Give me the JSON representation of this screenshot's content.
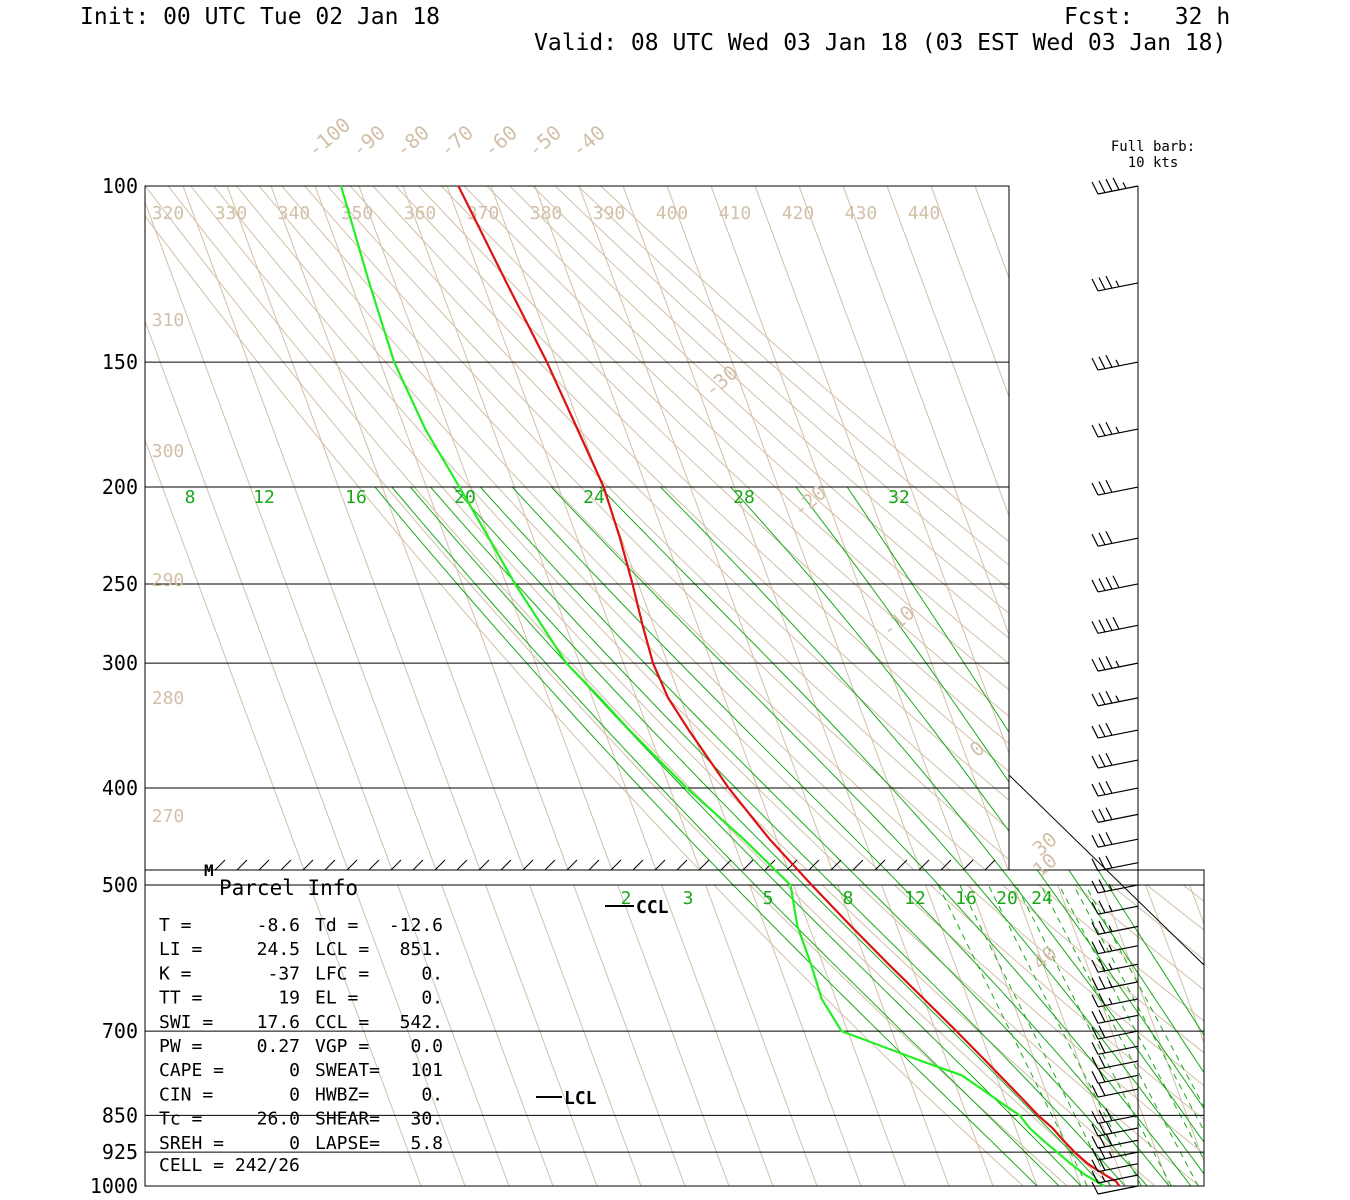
{
  "header": {
    "init": "Init: 00 UTC Tue 02 Jan 18",
    "fcst": "Fcst:   32 h",
    "valid": "Valid: 08 UTC Wed 03 Jan 18 (03 EST Wed 03 Jan 18)"
  },
  "barb_legend": {
    "line1": "Full barb:",
    "line2": "10 kts"
  },
  "chart_data": {
    "type": "line",
    "chart_kind": "Skew-T log-P sounding",
    "y_axis": {
      "scale": "log",
      "unit": "hPa",
      "ylim": [
        1000,
        100
      ],
      "tick_labels": [
        "100",
        "150",
        "200",
        "250",
        "300",
        "400",
        "500",
        "700",
        "850",
        "925",
        "1000"
      ]
    },
    "isotherm_labels": [
      "-100",
      "-90",
      "-80",
      "-70",
      "-60",
      "-50",
      "-40",
      "-30",
      "-20",
      "-10",
      "0",
      "10",
      "30",
      "40"
    ],
    "theta_labels": [
      "320",
      "330",
      "340",
      "350",
      "360",
      "370",
      "380",
      "390",
      "400",
      "410",
      "420",
      "430",
      "440",
      "310",
      "300",
      "290",
      "280",
      "270"
    ],
    "mixing_ratio_upper_labels": [
      "8",
      "12",
      "16",
      "20",
      "24",
      "28",
      "32"
    ],
    "mixing_ratio_lower_labels": [
      "2",
      "3",
      "5",
      "8",
      "12",
      "16",
      "20",
      "24"
    ],
    "series": [
      {
        "color": "#dd1111",
        "p": [
          1000,
          990,
          975,
          960,
          950,
          925,
          900,
          875,
          850,
          825,
          800,
          775,
          750,
          700,
          650,
          600,
          550,
          500,
          450,
          400,
          350,
          325,
          300,
          275,
          250,
          225,
          200,
          175,
          150,
          125,
          100
        ],
        "t": [
          -1.3,
          -1.6,
          -3.6,
          -5.4,
          -6.6,
          -8.6,
          -10.2,
          -11.6,
          -13.8,
          -15.5,
          -17.3,
          -19.2,
          -21.1,
          -25.3,
          -30.0,
          -35.1,
          -40.4,
          -45.9,
          -51.6,
          -56.6,
          -60.8,
          -62.8,
          -63.3,
          -62.5,
          -61.3,
          -60.3,
          -59.7,
          -60.8,
          -62.1,
          -64.6,
          -67.4
        ]
      },
      {
        "color": "#22ee22",
        "p": [
          1000,
          975,
          950,
          925,
          900,
          875,
          850,
          825,
          800,
          775,
          750,
          700,
          650,
          600,
          550,
          500,
          450,
          400,
          350,
          325,
          300,
          275,
          250,
          225,
          200,
          175,
          150,
          125,
          100
        ],
        "td": [
          -4.7,
          -8.1,
          -10.5,
          -12.6,
          -14.8,
          -16.8,
          -18.0,
          -21.2,
          -24.4,
          -27.8,
          -35.7,
          -51.4,
          -53.2,
          -52.7,
          -52.6,
          -50.7,
          -57.5,
          -66.1,
          -74.3,
          -78.3,
          -83.0,
          -85.4,
          -88.0,
          -90.1,
          -92.5,
          -95.4,
          -96.8,
          -95.8,
          -94.1
        ]
      }
    ],
    "markers": [
      "LCL",
      "CCL",
      "M"
    ],
    "wind_barbs": {
      "p": [
        1000,
        975,
        950,
        925,
        900,
        875,
        850,
        800,
        775,
        750,
        725,
        700,
        675,
        650,
        625,
        600,
        575,
        550,
        525,
        500,
        475,
        450,
        425,
        400,
        375,
        350,
        325,
        300,
        275,
        250,
        225,
        200,
        175,
        150,
        125,
        100
      ],
      "kt": [
        10,
        15,
        20,
        25,
        30,
        30,
        30,
        20,
        20,
        20,
        20,
        20,
        20,
        25,
        25,
        25,
        25,
        25,
        25,
        25,
        30,
        30,
        30,
        30,
        30,
        30,
        35,
        35,
        40,
        40,
        30,
        30,
        35,
        35,
        35,
        45
      ]
    },
    "parcel_info": {
      "title": "Parcel Info",
      "rows": [
        {
          "l": "T  =",
          "lv": "-8.6",
          "r": "Td =",
          "rv": "-12.6"
        },
        {
          "l": "LI =",
          "lv": "24.5",
          "r": "LCL =",
          "rv": "851."
        },
        {
          "l": "K  =",
          "lv": "-37",
          "r": "LFC =",
          "rv": "0."
        },
        {
          "l": "TT =",
          "lv": "19",
          "r": "EL  =",
          "rv": "0."
        },
        {
          "l": "SWI =",
          "lv": "17.6",
          "r": "CCL =",
          "rv": "542."
        },
        {
          "l": "PW =",
          "lv": "0.27",
          "r": "VGP =",
          "rv": "0.0"
        },
        {
          "l": "CAPE =",
          "lv": "0",
          "r": "SWEAT=",
          "rv": "101"
        },
        {
          "l": "CIN =",
          "lv": "0",
          "r": "HWBZ=",
          "rv": "0."
        },
        {
          "l": "Tc =",
          "lv": "26.0",
          "r": "SHEAR=",
          "rv": "30."
        },
        {
          "l": "SREH =",
          "lv": "0",
          "r": "LAPSE=",
          "rv": "5.8"
        }
      ],
      "cell": "CELL = 242/26"
    }
  }
}
